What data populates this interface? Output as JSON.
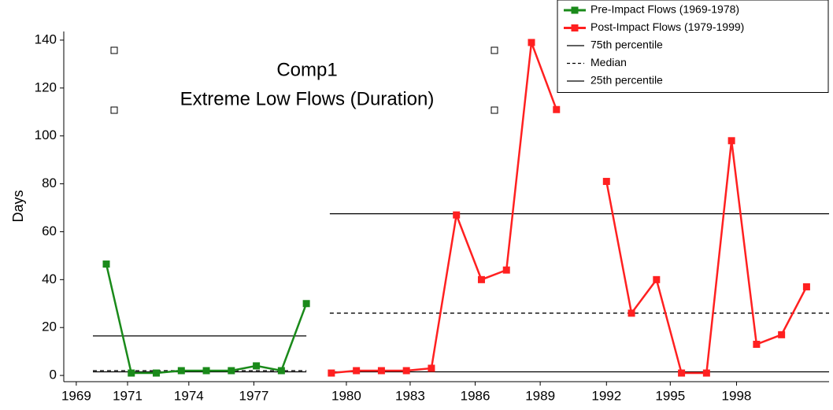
{
  "chart_data": {
    "type": "line",
    "title": "Comp1",
    "subtitle": "Extreme Low Flows (Duration)",
    "y_label": "Days",
    "xlim": [
      1968.3,
      1998.9
    ],
    "ylim": [
      -2.6,
      143.6
    ],
    "xticks": [
      {
        "value": 1968.8,
        "label": "1969"
      },
      {
        "value": 1970.85,
        "label": "1971"
      },
      {
        "value": 1973.3,
        "label": "1974"
      },
      {
        "value": 1975.9,
        "label": "1977"
      },
      {
        "value": 1979.6,
        "label": "1980"
      },
      {
        "value": 1982.15,
        "label": "1983"
      },
      {
        "value": 1984.75,
        "label": "1986"
      },
      {
        "value": 1987.35,
        "label": "1989"
      },
      {
        "value": 1990.0,
        "label": "1992"
      },
      {
        "value": 1992.55,
        "label": "1995"
      },
      {
        "value": 1995.2,
        "label": "1998"
      }
    ],
    "yticks": [
      0,
      20,
      40,
      60,
      80,
      100,
      120,
      140
    ],
    "legend": "top-right",
    "series": [
      {
        "name": "Pre-Impact Flows (1969-1978)",
        "color": "#1a8a1a",
        "x": [
          1970,
          1971,
          1972,
          1973,
          1974,
          1975,
          1976,
          1977,
          1978
        ],
        "values": [
          46.5,
          1,
          1,
          2,
          2,
          2,
          4,
          2,
          30
        ]
      },
      {
        "name": "Post-Impact Flows (1979-1999)",
        "color": "#ff2020",
        "x": [
          1979,
          1980,
          1981,
          1982,
          1983,
          1984,
          1985,
          1986,
          1987,
          1988,
          1989,
          1990,
          1991,
          1992,
          1993,
          1994,
          1995,
          1996,
          1997,
          1998
        ],
        "values": [
          1,
          2,
          2,
          2,
          3,
          67,
          40,
          44,
          139,
          111,
          null,
          81,
          26,
          40,
          1,
          1,
          98,
          13,
          17,
          37
        ]
      }
    ],
    "reference_lines": [
      {
        "name": "75th percentile",
        "dash": "solid",
        "values": [
          16.5,
          67.5
        ]
      },
      {
        "name": "Median",
        "dash": "dashed",
        "values": [
          2,
          26
        ]
      },
      {
        "name": "25th percentile",
        "dash": "solid",
        "values": [
          1.5,
          1.5
        ]
      }
    ]
  }
}
